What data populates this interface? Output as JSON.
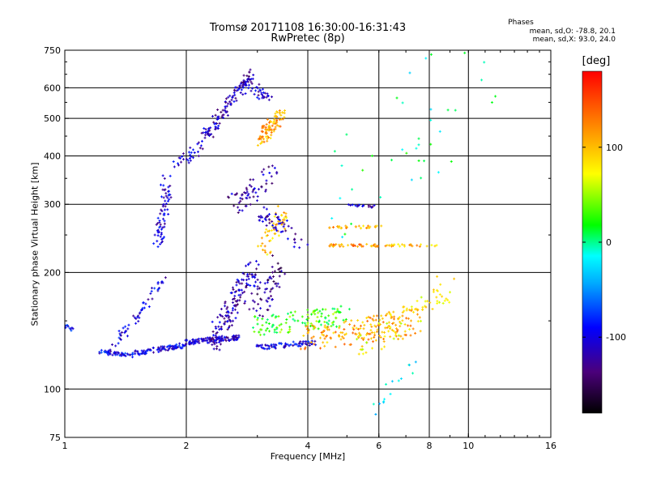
{
  "chart_data": {
    "type": "scatter",
    "title": "Tromsø 20171108 16:30:00-16:31:43",
    "subtitle": "RwPretec (8p)",
    "xlabel": "Frequency [MHz]",
    "ylabel": "Stationary phase Virtual Height [km]",
    "x_scale": "log",
    "y_scale": "log",
    "xlim": [
      1,
      16
    ],
    "ylim": [
      75,
      750
    ],
    "x_ticks": [
      "1",
      "2",
      "4",
      "6",
      "8",
      "10",
      "16"
    ],
    "y_ticks": [
      "75",
      "100",
      "200",
      "300",
      "400",
      "500",
      "600",
      "750"
    ],
    "x_grid": [
      2,
      4,
      6,
      8,
      10
    ],
    "y_grid": [
      100,
      200,
      300,
      400,
      500,
      600
    ],
    "grid": true,
    "colorbar": {
      "label": "[deg]",
      "range": [
        -180,
        180
      ],
      "ticks": [
        "100",
        "0",
        "-100"
      ],
      "tick_values": [
        100,
        0,
        -100
      ]
    },
    "phases_header": "Phases",
    "stats": [
      "mean, sd,O: -78.8, 20.1",
      "mean, sd,X: 93.0, 24.0"
    ],
    "traces": [
      {
        "x0": 1.0,
        "x1": 1.05,
        "y0": 145,
        "y1": 142,
        "phase": -90,
        "n": 10,
        "jitter": 0.02
      },
      {
        "x0": 1.2,
        "x1": 1.5,
        "y0": 125,
        "y1": 122,
        "phase": -95,
        "n": 40,
        "jitter": 0.015
      },
      {
        "x0": 1.45,
        "x1": 2.0,
        "y0": 123,
        "y1": 130,
        "phase": -100,
        "n": 90,
        "jitter": 0.02
      },
      {
        "x0": 1.3,
        "x1": 1.75,
        "y0": 125,
        "y1": 190,
        "phase": -100,
        "n": 60,
        "jitter": 0.04
      },
      {
        "x0": 2.0,
        "x1": 2.7,
        "y0": 132,
        "y1": 136,
        "phase": -110,
        "n": 110,
        "jitter": 0.02
      },
      {
        "x0": 2.3,
        "x1": 2.95,
        "y0": 130,
        "y1": 205,
        "phase": -115,
        "n": 140,
        "jitter": 0.08
      },
      {
        "x0": 1.7,
        "x1": 1.8,
        "y0": 235,
        "y1": 350,
        "phase": -105,
        "n": 70,
        "jitter": 0.06
      },
      {
        "x0": 1.9,
        "x1": 2.2,
        "y0": 380,
        "y1": 430,
        "phase": -110,
        "n": 30,
        "jitter": 0.05
      },
      {
        "x0": 2.2,
        "x1": 2.9,
        "y0": 440,
        "y1": 650,
        "phase": -115,
        "n": 130,
        "jitter": 0.05
      },
      {
        "x0": 2.9,
        "x1": 3.2,
        "y0": 600,
        "y1": 560,
        "phase": -110,
        "n": 30,
        "jitter": 0.05
      },
      {
        "x0": 2.6,
        "x1": 3.3,
        "y0": 300,
        "y1": 360,
        "phase": -120,
        "n": 60,
        "jitter": 0.08
      },
      {
        "x0": 3.05,
        "x1": 3.45,
        "y0": 440,
        "y1": 520,
        "phase": 110,
        "n": 90,
        "jitter": 0.06
      },
      {
        "x0": 3.1,
        "x1": 3.5,
        "y0": 230,
        "y1": 280,
        "phase": 95,
        "n": 50,
        "jitter": 0.08
      },
      {
        "x0": 3.0,
        "x1": 3.9,
        "y0": 290,
        "y1": 240,
        "phase": -115,
        "n": 50,
        "jitter": 0.07
      },
      {
        "x0": 3.0,
        "x1": 4.9,
        "y0": 145,
        "y1": 155,
        "phase": 30,
        "n": 120,
        "jitter": 0.08
      },
      {
        "x0": 3.0,
        "x1": 3.4,
        "y0": 160,
        "y1": 210,
        "phase": -130,
        "n": 60,
        "jitter": 0.1
      },
      {
        "x0": 3.0,
        "x1": 4.2,
        "y0": 128,
        "y1": 132,
        "phase": -100,
        "n": 70,
        "jitter": 0.02
      },
      {
        "x0": 4.0,
        "x1": 7.5,
        "y0": 135,
        "y1": 150,
        "phase": 110,
        "n": 170,
        "jitter": 0.1
      },
      {
        "x0": 5.5,
        "x1": 8.8,
        "y0": 130,
        "y1": 180,
        "phase": 80,
        "n": 80,
        "jitter": 0.12
      },
      {
        "x0": 4.5,
        "x1": 6.0,
        "y0": 235,
        "y1": 235,
        "phase": 120,
        "n": 40,
        "jitter": 0.01
      },
      {
        "x0": 4.5,
        "x1": 6.1,
        "y0": 262,
        "y1": 262,
        "phase": 110,
        "n": 30,
        "jitter": 0.01
      },
      {
        "x0": 5.0,
        "x1": 5.9,
        "y0": 298,
        "y1": 296,
        "phase": -110,
        "n": 20,
        "jitter": 0.01
      },
      {
        "x0": 6.2,
        "x1": 8.4,
        "y0": 235,
        "y1": 235,
        "phase": 100,
        "n": 25,
        "jitter": 0.01
      },
      {
        "x0": 4.0,
        "x1": 10.5,
        "y0": 300,
        "y1": 600,
        "phase": 0,
        "n": 40,
        "jitter": 0.4
      },
      {
        "x0": 5.8,
        "x1": 8.0,
        "y0": 90,
        "y1": 120,
        "phase": -20,
        "n": 15,
        "jitter": 0.08
      }
    ]
  }
}
